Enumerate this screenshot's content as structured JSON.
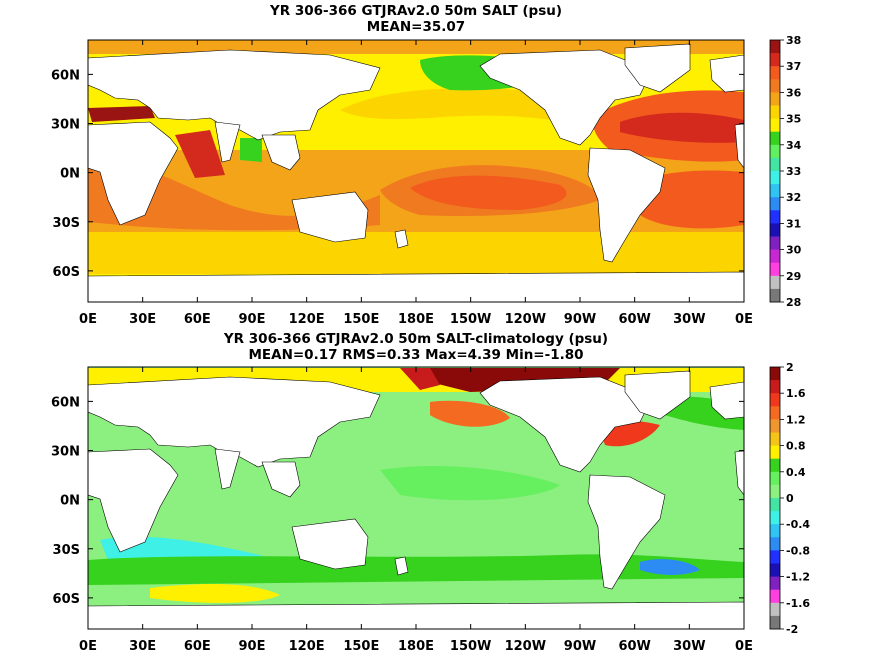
{
  "chart_data": [
    {
      "type": "heatmap",
      "title": "YR 306-366 GTJRAv2.0 50m SALT (psu)",
      "subtitle": "MEAN=35.07",
      "x_ticks": [
        "0E",
        "30E",
        "60E",
        "90E",
        "120E",
        "150E",
        "180E",
        "150W",
        "120W",
        "90W",
        "60W",
        "30W",
        "0E"
      ],
      "y_ticks": [
        "60N",
        "30N",
        "0N",
        "30S",
        "60S"
      ],
      "colorbar": {
        "labels": [
          "38",
          "37",
          "36",
          "35",
          "34",
          "33",
          "32",
          "31",
          "30",
          "29",
          "28"
        ],
        "colors": [
          "#9a1414",
          "#d42a1e",
          "#f25a1e",
          "#f07a20",
          "#f4a418",
          "#fcd400",
          "#fff000",
          "#36d21e",
          "#60f060",
          "#44e4a4",
          "#3ef0e6",
          "#30c4f4",
          "#2d8cf4",
          "#2030ff",
          "#1a10b4",
          "#8020c0",
          "#c828d4",
          "#ff40e0",
          "#c0c0c0",
          "#787878"
        ]
      }
    },
    {
      "type": "heatmap",
      "title": "YR 306-366 GTJRAv2.0 50m SALT-climatology (psu)",
      "subtitle": "MEAN=0.17   RMS=0.33   Max=4.39   Min=-1.80",
      "x_ticks": [
        "0E",
        "30E",
        "60E",
        "90E",
        "120E",
        "150E",
        "180E",
        "150W",
        "120W",
        "90W",
        "60W",
        "30W",
        "0E"
      ],
      "y_ticks": [
        "60N",
        "30N",
        "0N",
        "30S",
        "60S"
      ],
      "colorbar": {
        "labels": [
          "2",
          "1.6",
          "1.2",
          "0.8",
          "0.4",
          "0",
          "-0.4",
          "-0.8",
          "-1.2",
          "-1.6",
          "-2"
        ],
        "colors": [
          "#8a0a0a",
          "#c81c1c",
          "#f0381c",
          "#f46a20",
          "#f09630",
          "#f4c418",
          "#fff000",
          "#36d21e",
          "#66f060",
          "#8cf080",
          "#44e4a4",
          "#3ef0e6",
          "#30c4f4",
          "#2d8cf4",
          "#2030ff",
          "#1a10b4",
          "#8020c0",
          "#ff40e0",
          "#c0c0c0",
          "#787878"
        ]
      }
    }
  ]
}
